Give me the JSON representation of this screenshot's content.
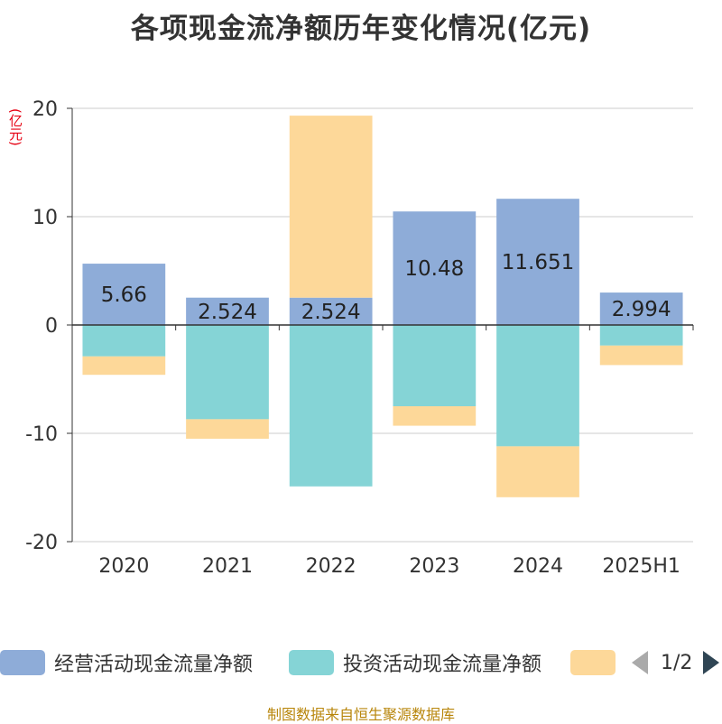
{
  "title": "各项现金流净额历年变化情况(亿元)",
  "unit_label": "(亿元)",
  "source": "制图数据来自恒生聚源数据库",
  "legend": {
    "items": [
      {
        "label": "经营活动现金流量净额",
        "color": "#8eacd8"
      },
      {
        "label": "投资活动现金流量净额",
        "color": "#85d4d6"
      },
      {
        "label": "",
        "color": "#fdd899"
      }
    ],
    "page": "1/2"
  },
  "chart_data": {
    "type": "bar",
    "stacked": true,
    "categories": [
      "2020",
      "2021",
      "2022",
      "2023",
      "2024",
      "2025H1"
    ],
    "ylim": [
      -20,
      20
    ],
    "yticks": [
      -20,
      -10,
      0,
      10,
      20
    ],
    "grid": true,
    "legend_position": "bottom",
    "series": [
      {
        "name": "经营活动现金流量净额",
        "color": "#8eacd8",
        "values": [
          5.66,
          2.524,
          2.524,
          10.48,
          11.651,
          2.994
        ],
        "labels": [
          "5.66",
          "2.524",
          "2.524",
          "10.48",
          "11.651",
          "2.994"
        ]
      },
      {
        "name": "投资活动现金流量净额",
        "color": "#85d4d6",
        "values": [
          -2.9,
          -8.7,
          -14.9,
          -7.5,
          -11.2,
          -1.9
        ]
      },
      {
        "name": "",
        "color": "#fdd899",
        "values": [
          -1.7,
          -1.8,
          16.8,
          -1.8,
          -4.7,
          -1.8
        ]
      }
    ]
  }
}
